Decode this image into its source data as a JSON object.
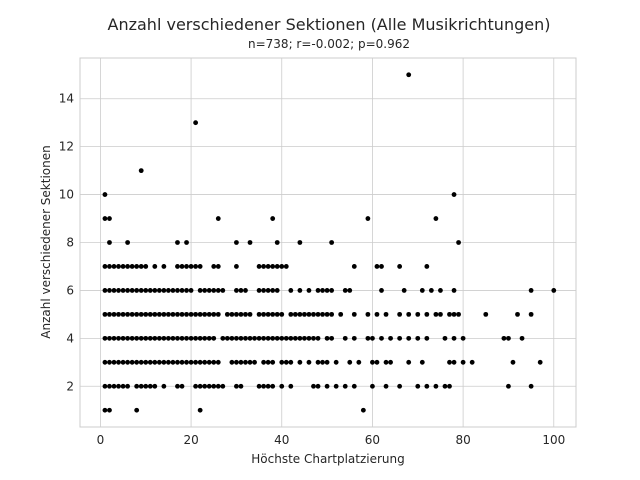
{
  "chart_data": {
    "type": "scatter",
    "title": "Anzahl verschiedener Sektionen (Alle Musikrichtungen)",
    "subtitle": "n=738; r=-0.002; p=0.962",
    "xlabel": "Höchste Chartplatzierung",
    "ylabel": "Anzahl verschiedener Sektionen",
    "xlim": [
      -4.5,
      104.9
    ],
    "ylim": [
      0.3,
      15.7
    ],
    "xticks": [
      0,
      20,
      40,
      60,
      80,
      100
    ],
    "yticks": [
      2,
      4,
      6,
      8,
      10,
      12,
      14
    ],
    "grid": true,
    "marker_color": "#000000",
    "points": [
      [
        1,
        1
      ],
      [
        2,
        1
      ],
      [
        8,
        1
      ],
      [
        22,
        1
      ],
      [
        58,
        1
      ],
      [
        1,
        2
      ],
      [
        2,
        2
      ],
      [
        3,
        2
      ],
      [
        4,
        2
      ],
      [
        5,
        2
      ],
      [
        6,
        2
      ],
      [
        8,
        2
      ],
      [
        9,
        2
      ],
      [
        10,
        2
      ],
      [
        11,
        2
      ],
      [
        12,
        2
      ],
      [
        14,
        2
      ],
      [
        17,
        2
      ],
      [
        18,
        2
      ],
      [
        21,
        2
      ],
      [
        22,
        2
      ],
      [
        23,
        2
      ],
      [
        24,
        2
      ],
      [
        25,
        2
      ],
      [
        26,
        2
      ],
      [
        27,
        2
      ],
      [
        30,
        2
      ],
      [
        31,
        2
      ],
      [
        35,
        2
      ],
      [
        36,
        2
      ],
      [
        37,
        2
      ],
      [
        38,
        2
      ],
      [
        40,
        2
      ],
      [
        42,
        2
      ],
      [
        47,
        2
      ],
      [
        48,
        2
      ],
      [
        50,
        2
      ],
      [
        52,
        2
      ],
      [
        54,
        2
      ],
      [
        56,
        2
      ],
      [
        60,
        2
      ],
      [
        63,
        2
      ],
      [
        66,
        2
      ],
      [
        70,
        2
      ],
      [
        72,
        2
      ],
      [
        74,
        2
      ],
      [
        76,
        2
      ],
      [
        77,
        2
      ],
      [
        90,
        2
      ],
      [
        95,
        2
      ],
      [
        1,
        3
      ],
      [
        2,
        3
      ],
      [
        3,
        3
      ],
      [
        4,
        3
      ],
      [
        5,
        3
      ],
      [
        6,
        3
      ],
      [
        7,
        3
      ],
      [
        8,
        3
      ],
      [
        9,
        3
      ],
      [
        10,
        3
      ],
      [
        11,
        3
      ],
      [
        12,
        3
      ],
      [
        13,
        3
      ],
      [
        14,
        3
      ],
      [
        15,
        3
      ],
      [
        16,
        3
      ],
      [
        17,
        3
      ],
      [
        18,
        3
      ],
      [
        19,
        3
      ],
      [
        20,
        3
      ],
      [
        21,
        3
      ],
      [
        22,
        3
      ],
      [
        23,
        3
      ],
      [
        24,
        3
      ],
      [
        25,
        3
      ],
      [
        26,
        3
      ],
      [
        29,
        3
      ],
      [
        30,
        3
      ],
      [
        31,
        3
      ],
      [
        32,
        3
      ],
      [
        33,
        3
      ],
      [
        34,
        3
      ],
      [
        36,
        3
      ],
      [
        37,
        3
      ],
      [
        38,
        3
      ],
      [
        40,
        3
      ],
      [
        41,
        3
      ],
      [
        42,
        3
      ],
      [
        44,
        3
      ],
      [
        46,
        3
      ],
      [
        48,
        3
      ],
      [
        49,
        3
      ],
      [
        50,
        3
      ],
      [
        52,
        3
      ],
      [
        55,
        3
      ],
      [
        57,
        3
      ],
      [
        60,
        3
      ],
      [
        61,
        3
      ],
      [
        63,
        3
      ],
      [
        64,
        3
      ],
      [
        68,
        3
      ],
      [
        71,
        3
      ],
      [
        77,
        3
      ],
      [
        78,
        3
      ],
      [
        80,
        3
      ],
      [
        82,
        3
      ],
      [
        91,
        3
      ],
      [
        97,
        3
      ],
      [
        1,
        4
      ],
      [
        2,
        4
      ],
      [
        3,
        4
      ],
      [
        4,
        4
      ],
      [
        5,
        4
      ],
      [
        6,
        4
      ],
      [
        7,
        4
      ],
      [
        8,
        4
      ],
      [
        9,
        4
      ],
      [
        10,
        4
      ],
      [
        11,
        4
      ],
      [
        12,
        4
      ],
      [
        13,
        4
      ],
      [
        14,
        4
      ],
      [
        15,
        4
      ],
      [
        16,
        4
      ],
      [
        17,
        4
      ],
      [
        18,
        4
      ],
      [
        19,
        4
      ],
      [
        20,
        4
      ],
      [
        21,
        4
      ],
      [
        22,
        4
      ],
      [
        23,
        4
      ],
      [
        24,
        4
      ],
      [
        25,
        4
      ],
      [
        27,
        4
      ],
      [
        28,
        4
      ],
      [
        29,
        4
      ],
      [
        30,
        4
      ],
      [
        31,
        4
      ],
      [
        32,
        4
      ],
      [
        33,
        4
      ],
      [
        34,
        4
      ],
      [
        35,
        4
      ],
      [
        36,
        4
      ],
      [
        37,
        4
      ],
      [
        38,
        4
      ],
      [
        39,
        4
      ],
      [
        40,
        4
      ],
      [
        41,
        4
      ],
      [
        42,
        4
      ],
      [
        43,
        4
      ],
      [
        44,
        4
      ],
      [
        45,
        4
      ],
      [
        46,
        4
      ],
      [
        47,
        4
      ],
      [
        48,
        4
      ],
      [
        50,
        4
      ],
      [
        51,
        4
      ],
      [
        54,
        4
      ],
      [
        56,
        4
      ],
      [
        59,
        4
      ],
      [
        60,
        4
      ],
      [
        62,
        4
      ],
      [
        64,
        4
      ],
      [
        66,
        4
      ],
      [
        68,
        4
      ],
      [
        70,
        4
      ],
      [
        72,
        4
      ],
      [
        76,
        4
      ],
      [
        78,
        4
      ],
      [
        80,
        4
      ],
      [
        89,
        4
      ],
      [
        90,
        4
      ],
      [
        93,
        4
      ],
      [
        1,
        5
      ],
      [
        2,
        5
      ],
      [
        3,
        5
      ],
      [
        4,
        5
      ],
      [
        5,
        5
      ],
      [
        6,
        5
      ],
      [
        7,
        5
      ],
      [
        8,
        5
      ],
      [
        9,
        5
      ],
      [
        10,
        5
      ],
      [
        11,
        5
      ],
      [
        12,
        5
      ],
      [
        13,
        5
      ],
      [
        14,
        5
      ],
      [
        15,
        5
      ],
      [
        16,
        5
      ],
      [
        17,
        5
      ],
      [
        18,
        5
      ],
      [
        19,
        5
      ],
      [
        20,
        5
      ],
      [
        21,
        5
      ],
      [
        22,
        5
      ],
      [
        23,
        5
      ],
      [
        24,
        5
      ],
      [
        25,
        5
      ],
      [
        26,
        5
      ],
      [
        28,
        5
      ],
      [
        29,
        5
      ],
      [
        30,
        5
      ],
      [
        31,
        5
      ],
      [
        32,
        5
      ],
      [
        33,
        5
      ],
      [
        35,
        5
      ],
      [
        36,
        5
      ],
      [
        37,
        5
      ],
      [
        38,
        5
      ],
      [
        39,
        5
      ],
      [
        40,
        5
      ],
      [
        42,
        5
      ],
      [
        43,
        5
      ],
      [
        44,
        5
      ],
      [
        45,
        5
      ],
      [
        46,
        5
      ],
      [
        47,
        5
      ],
      [
        48,
        5
      ],
      [
        49,
        5
      ],
      [
        50,
        5
      ],
      [
        51,
        5
      ],
      [
        53,
        5
      ],
      [
        56,
        5
      ],
      [
        59,
        5
      ],
      [
        61,
        5
      ],
      [
        63,
        5
      ],
      [
        66,
        5
      ],
      [
        68,
        5
      ],
      [
        70,
        5
      ],
      [
        72,
        5
      ],
      [
        74,
        5
      ],
      [
        75,
        5
      ],
      [
        77,
        5
      ],
      [
        78,
        5
      ],
      [
        79,
        5
      ],
      [
        85,
        5
      ],
      [
        92,
        5
      ],
      [
        95,
        5
      ],
      [
        1,
        6
      ],
      [
        2,
        6
      ],
      [
        3,
        6
      ],
      [
        4,
        6
      ],
      [
        5,
        6
      ],
      [
        6,
        6
      ],
      [
        7,
        6
      ],
      [
        8,
        6
      ],
      [
        9,
        6
      ],
      [
        10,
        6
      ],
      [
        11,
        6
      ],
      [
        12,
        6
      ],
      [
        13,
        6
      ],
      [
        14,
        6
      ],
      [
        15,
        6
      ],
      [
        16,
        6
      ],
      [
        17,
        6
      ],
      [
        18,
        6
      ],
      [
        19,
        6
      ],
      [
        20,
        6
      ],
      [
        22,
        6
      ],
      [
        23,
        6
      ],
      [
        24,
        6
      ],
      [
        25,
        6
      ],
      [
        26,
        6
      ],
      [
        27,
        6
      ],
      [
        30,
        6
      ],
      [
        31,
        6
      ],
      [
        32,
        6
      ],
      [
        35,
        6
      ],
      [
        36,
        6
      ],
      [
        37,
        6
      ],
      [
        38,
        6
      ],
      [
        39,
        6
      ],
      [
        42,
        6
      ],
      [
        44,
        6
      ],
      [
        46,
        6
      ],
      [
        48,
        6
      ],
      [
        49,
        6
      ],
      [
        50,
        6
      ],
      [
        51,
        6
      ],
      [
        54,
        6
      ],
      [
        55,
        6
      ],
      [
        62,
        6
      ],
      [
        67,
        6
      ],
      [
        71,
        6
      ],
      [
        73,
        6
      ],
      [
        75,
        6
      ],
      [
        78,
        6
      ],
      [
        95,
        6
      ],
      [
        100,
        6
      ],
      [
        1,
        7
      ],
      [
        2,
        7
      ],
      [
        3,
        7
      ],
      [
        4,
        7
      ],
      [
        5,
        7
      ],
      [
        6,
        7
      ],
      [
        7,
        7
      ],
      [
        8,
        7
      ],
      [
        9,
        7
      ],
      [
        10,
        7
      ],
      [
        12,
        7
      ],
      [
        14,
        7
      ],
      [
        17,
        7
      ],
      [
        18,
        7
      ],
      [
        19,
        7
      ],
      [
        20,
        7
      ],
      [
        21,
        7
      ],
      [
        22,
        7
      ],
      [
        25,
        7
      ],
      [
        26,
        7
      ],
      [
        30,
        7
      ],
      [
        35,
        7
      ],
      [
        36,
        7
      ],
      [
        37,
        7
      ],
      [
        38,
        7
      ],
      [
        39,
        7
      ],
      [
        40,
        7
      ],
      [
        41,
        7
      ],
      [
        56,
        7
      ],
      [
        61,
        7
      ],
      [
        62,
        7
      ],
      [
        66,
        7
      ],
      [
        72,
        7
      ],
      [
        2,
        8
      ],
      [
        6,
        8
      ],
      [
        17,
        8
      ],
      [
        19,
        8
      ],
      [
        30,
        8
      ],
      [
        33,
        8
      ],
      [
        39,
        8
      ],
      [
        44,
        8
      ],
      [
        51,
        8
      ],
      [
        79,
        8
      ],
      [
        1,
        9
      ],
      [
        2,
        9
      ],
      [
        26,
        9
      ],
      [
        38,
        9
      ],
      [
        59,
        9
      ],
      [
        74,
        9
      ],
      [
        1,
        10
      ],
      [
        78,
        10
      ],
      [
        9,
        11
      ],
      [
        21,
        13
      ],
      [
        68,
        15
      ]
    ]
  }
}
